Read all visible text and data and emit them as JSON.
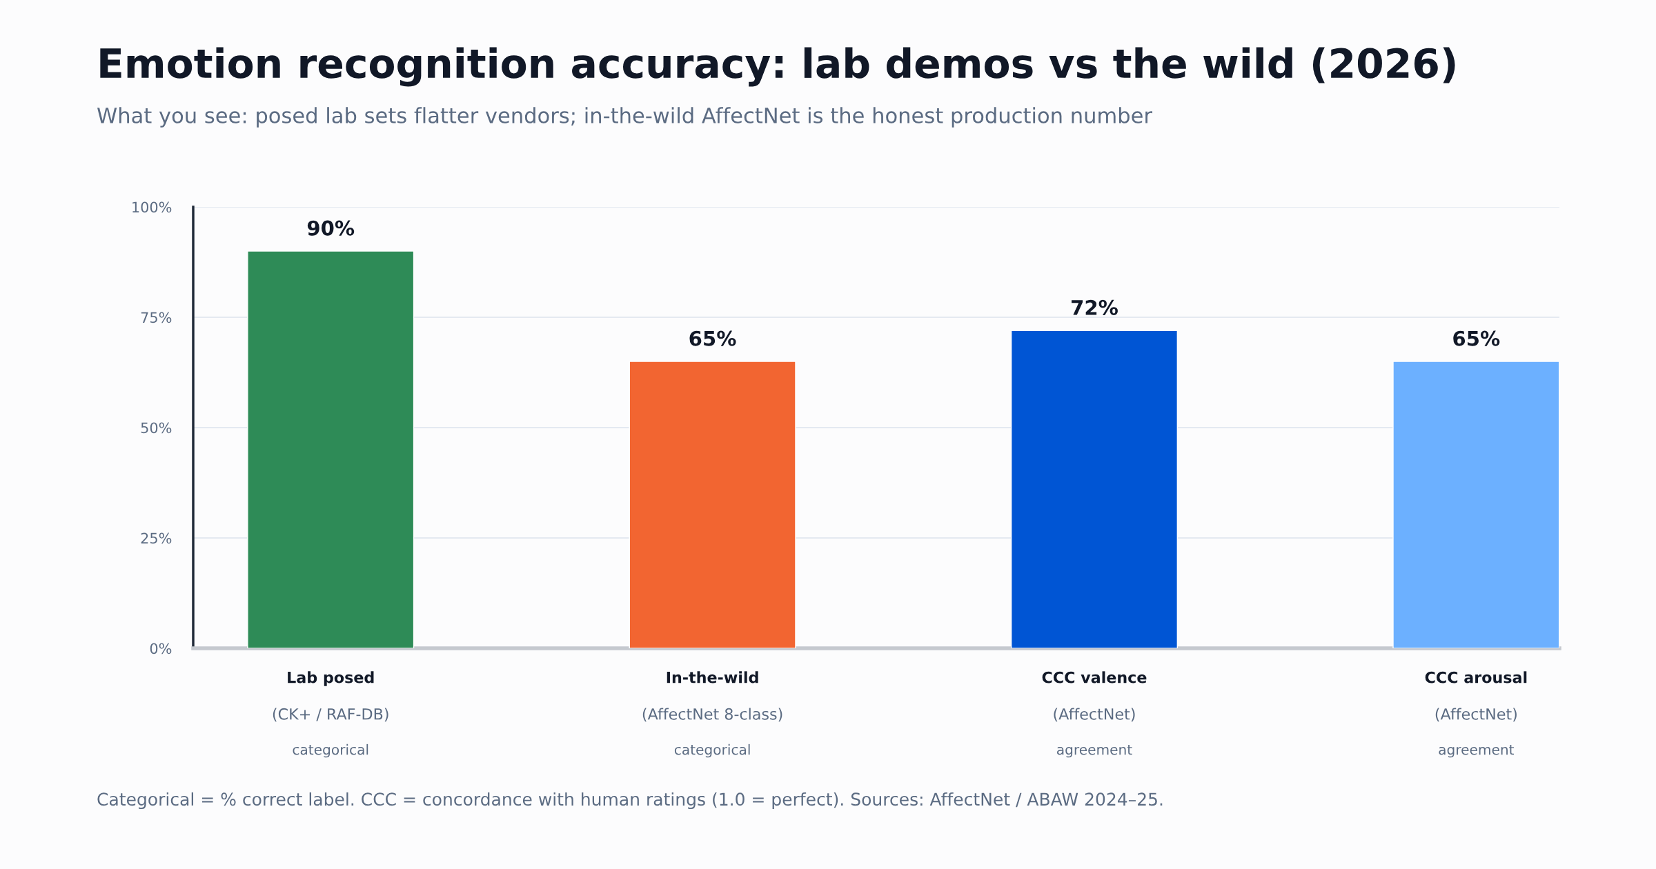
{
  "chart_data": {
    "type": "bar",
    "title": "Emotion recognition accuracy: lab demos vs the wild (2026)",
    "subtitle": "What you see: posed lab sets flatter vendors; in-the-wild AffectNet is the honest production number",
    "categories": [
      "Lab posed\n(CK+ / RAF-DB)\ncategorical",
      "In-the-wild\n(AffectNet 8-class)\ncategorical",
      "CCC valence\n(AffectNet)\nagreement",
      "CCC arousal\n(AffectNet)\nagreement"
    ],
    "values": [
      90,
      65,
      72,
      65
    ],
    "colors": [
      "#2e8b57",
      "#f26531",
      "#0055d4",
      "#6cb0ff"
    ],
    "value_labels": [
      "90%",
      "65%",
      "72%",
      "65%"
    ],
    "ylim": [
      0,
      100
    ],
    "yticks": [
      {
        "value": 0,
        "label": "0%"
      },
      {
        "value": 25,
        "label": "25%"
      },
      {
        "value": 50,
        "label": "50%"
      },
      {
        "value": 75,
        "label": "75%"
      },
      {
        "value": 100,
        "label": "100%"
      }
    ],
    "grid": "y",
    "legend": false,
    "annotations": [
      "Categorical = % correct label. CCC = concordance with human ratings (1.0 = perfect). Sources: AffectNet / ABAW 2024–25."
    ]
  }
}
